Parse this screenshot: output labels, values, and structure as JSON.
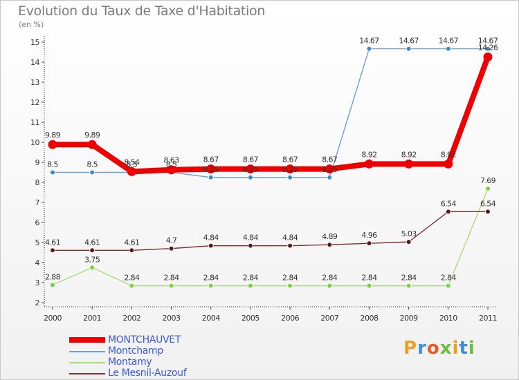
{
  "header": {
    "title": "Evolution du Taux de Taxe d'Habitation",
    "unit": "(en %)"
  },
  "logo": {
    "text": "Proxiti",
    "colors": [
      "#e8a02a",
      "#3b8fd8",
      "#e85a2a",
      "#6bbd3a",
      "#e8a02a",
      "#3b8fd8",
      "#6bbd3a"
    ]
  },
  "chart_data": {
    "type": "line",
    "title": "Evolution du Taux de Taxe d'Habitation",
    "ylabel": "(en %)",
    "xlabel": "",
    "x": [
      "2000",
      "2001",
      "2002",
      "2003",
      "2004",
      "2005",
      "2006",
      "2007",
      "2008",
      "2009",
      "2010",
      "2011"
    ],
    "ylim": [
      2,
      15
    ],
    "yticks": [
      "2",
      "3",
      "4",
      "5",
      "6",
      "7",
      "8",
      "9",
      "10",
      "11",
      "12",
      "13",
      "14",
      "15"
    ],
    "grid": false,
    "legend_position": "bottom-left",
    "series": [
      {
        "name": "MONTCHAUVET",
        "color": "#ee0000",
        "emphasis": true,
        "values": [
          9.89,
          9.89,
          8.54,
          8.63,
          8.67,
          8.67,
          8.67,
          8.67,
          8.92,
          8.92,
          8.92,
          14.26
        ],
        "labels": [
          "9.89",
          "9.89",
          "8.54",
          "8.63",
          "8.67",
          "8.67",
          "8.67",
          "8.67",
          "8.92",
          "8.92",
          "8.92",
          "14.26"
        ]
      },
      {
        "name": "Montchamp",
        "color": "#6f9fd0",
        "point_color": "#3f86c6",
        "emphasis": false,
        "values": [
          8.5,
          8.5,
          8.5,
          8.5,
          8.25,
          8.25,
          8.25,
          8.25,
          14.67,
          14.67,
          14.67,
          14.67
        ],
        "labels": [
          "8.5",
          "8.5",
          "8.5",
          "8.5",
          "8.25",
          "8.25",
          "8.25",
          "8.25",
          "14.67",
          "14.67",
          "14.67",
          "14.67"
        ]
      },
      {
        "name": "Montamy",
        "color": "#a8dc7a",
        "point_color": "#7fce3e",
        "emphasis": false,
        "values": [
          2.88,
          3.75,
          2.84,
          2.84,
          2.84,
          2.84,
          2.84,
          2.84,
          2.84,
          2.84,
          2.84,
          7.69
        ],
        "labels": [
          "2.88",
          "3.75",
          "2.84",
          "2.84",
          "2.84",
          "2.84",
          "2.84",
          "2.84",
          "2.84",
          "2.84",
          "2.84",
          "7.69"
        ]
      },
      {
        "name": "Le Mesnil-Auzouf",
        "color": "#7a3030",
        "point_color": "#5a1818",
        "emphasis": false,
        "values": [
          4.61,
          4.61,
          4.61,
          4.7,
          4.84,
          4.84,
          4.84,
          4.89,
          4.96,
          5.03,
          6.54,
          6.54
        ],
        "labels": [
          "4.61",
          "4.61",
          "4.61",
          "4.7",
          "4.84",
          "4.84",
          "4.84",
          "4.89",
          "4.96",
          "5.03",
          "6.54",
          "6.54"
        ]
      }
    ]
  }
}
